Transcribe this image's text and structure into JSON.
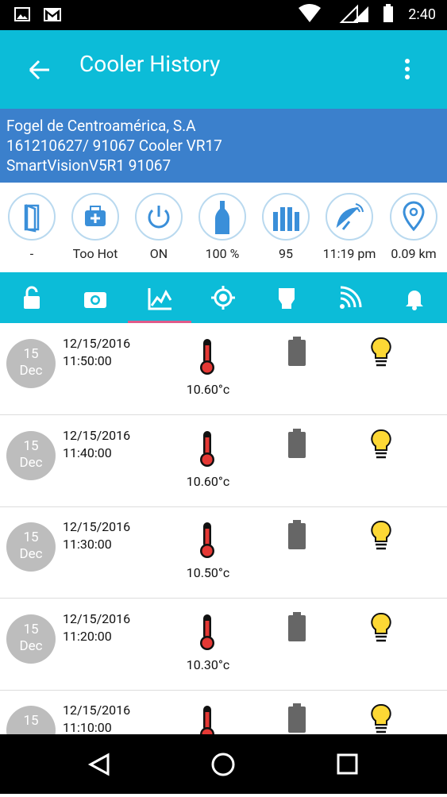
{
  "status_bar": {
    "time": "2:40"
  },
  "app_bar": {
    "title": "Cooler History"
  },
  "info": {
    "lines": [
      "Fogel de Centroamérica, S.A",
      "161210627/ 91067  Cooler VR17",
      "SmartVisionV5R1  91067"
    ]
  },
  "status_icons": {
    "labels": [
      "-",
      "Too Hot",
      "ON",
      "100 %",
      "95",
      "11:19 pm",
      "0.09 km"
    ]
  },
  "history": {
    "rows": [
      {
        "day": "15",
        "month": "Dec",
        "date": "12/15/2016",
        "time": "11:50:00",
        "temperature": "10.60°c"
      },
      {
        "day": "15",
        "month": "Dec",
        "date": "12/15/2016",
        "time": "11:40:00",
        "temperature": "10.60°c"
      },
      {
        "day": "15",
        "month": "Dec",
        "date": "12/15/2016",
        "time": "11:30:00",
        "temperature": "10.50°c"
      },
      {
        "day": "15",
        "month": "Dec",
        "date": "12/15/2016",
        "time": "11:20:00",
        "temperature": "10.30°c"
      },
      {
        "day": "15",
        "date": "12/15/2016",
        "time": "11:10:00"
      }
    ]
  }
}
